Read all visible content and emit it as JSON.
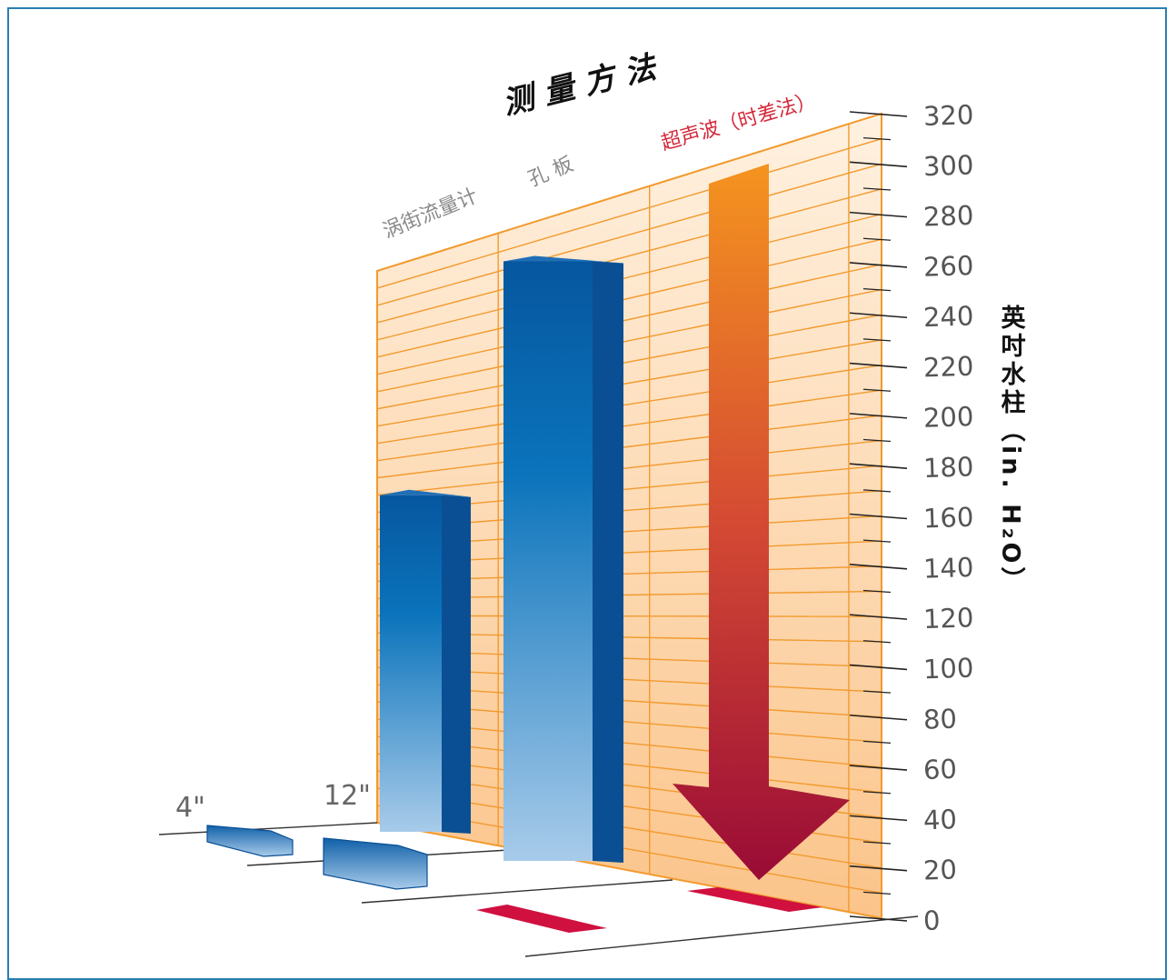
{
  "chart_data": {
    "type": "bar",
    "title": "测 量 方 法",
    "ylabel": "英吋水柱（in. H₂O）",
    "ylim": [
      0,
      320
    ],
    "yticks": [
      0,
      20,
      40,
      60,
      80,
      100,
      120,
      140,
      160,
      180,
      200,
      220,
      240,
      260,
      280,
      300,
      320
    ],
    "categories": [
      "涡街流量计",
      "孔 板",
      "超声波（时差法）"
    ],
    "depth_labels": [
      "4\"",
      "12\""
    ],
    "series": [
      {
        "name": "4\"",
        "values": [
          2,
          2,
          0
        ]
      },
      {
        "name": "12\"",
        "values": [
          160,
          285,
          0
        ]
      }
    ],
    "annotations": [
      "arrow: 超声波（时差法） decreasing"
    ],
    "grid": true,
    "colors": {
      "bar_blue": "#0a4f94",
      "bar_blue_light": "#9cc4e8",
      "wall_fill": "#fde3c4",
      "grid_line": "#f29a2e",
      "arrow_top": "#f39321",
      "arrow_bottom": "#9b0a35",
      "ultrasonic_label": "#d42a3c",
      "frame": "#2a7fb3"
    }
  }
}
